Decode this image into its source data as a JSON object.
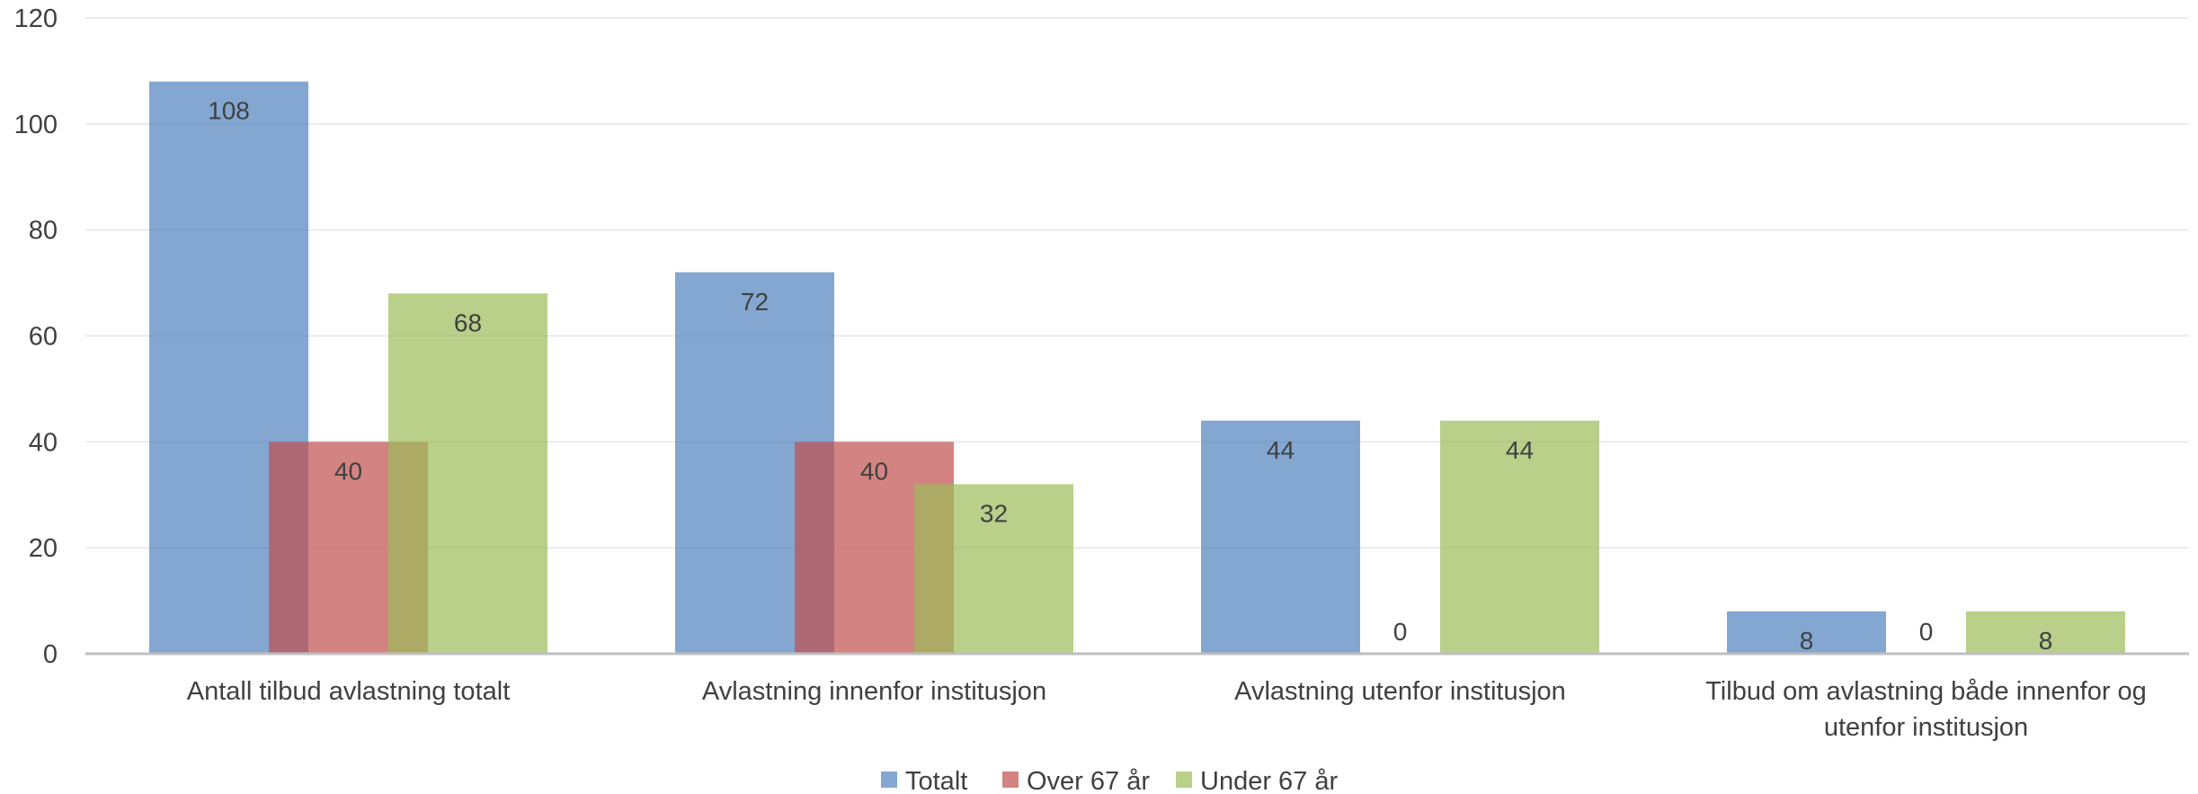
{
  "chart_data": {
    "type": "bar",
    "categories": [
      [
        "Antall tilbud avlastning totalt"
      ],
      [
        "Avlastning innenfor institusjon"
      ],
      [
        "Avlastning utenfor institusjon"
      ],
      [
        "Tilbud om avlastning både innenfor og",
        "utenfor institusjon"
      ]
    ],
    "series": [
      {
        "name": "Totalt",
        "color": "#4F81BD",
        "values": [
          108,
          72,
          44,
          8
        ]
      },
      {
        "name": "Over 67 år",
        "color": "#C0504D",
        "values": [
          40,
          40,
          0,
          0
        ]
      },
      {
        "name": "Under 67 år",
        "color": "#9BBB59",
        "values": [
          68,
          32,
          44,
          8
        ]
      }
    ],
    "ylim": [
      0,
      120
    ],
    "yticks": [
      0,
      20,
      40,
      60,
      80,
      100,
      120
    ],
    "grid": true,
    "legend_position": "bottom",
    "bar_opacity": 0.7,
    "title": "",
    "xlabel": "",
    "ylabel": ""
  }
}
